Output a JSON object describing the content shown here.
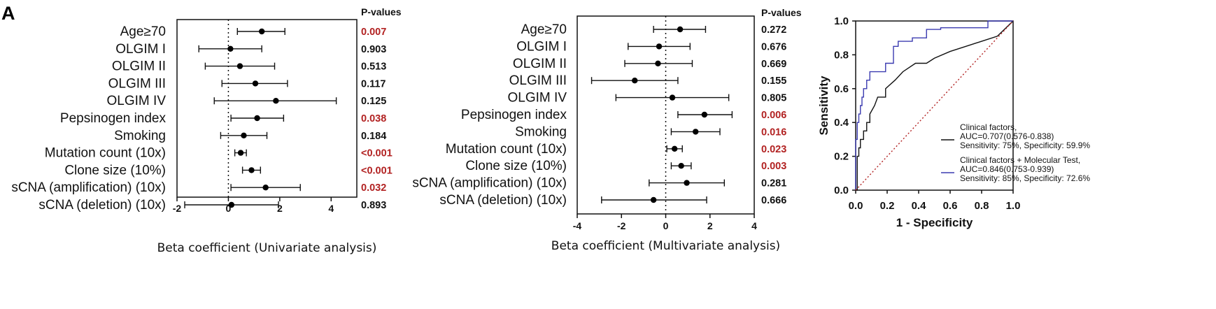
{
  "figure": {
    "panel_letter": "A"
  },
  "chart_data": [
    {
      "type": "forest",
      "p_header": "P-values",
      "xlabel": "Beta coefficient (Univariate analysis)",
      "xlim": [
        -2,
        5
      ],
      "xticks": [
        -2,
        0,
        2,
        4
      ],
      "reference_line": 0,
      "colors": {
        "significant": "#b22222",
        "nonsignificant": "#111111"
      },
      "rows": [
        {
          "label": "Age≥70",
          "estimate": 1.3,
          "lower": 0.35,
          "upper": 2.2,
          "p": "0.007",
          "significant": true
        },
        {
          "label": "OLGIM I",
          "estimate": 0.08,
          "lower": -1.15,
          "upper": 1.3,
          "p": "0.903",
          "significant": false
        },
        {
          "label": "OLGIM II",
          "estimate": 0.45,
          "lower": -0.9,
          "upper": 1.8,
          "p": "0.513",
          "significant": false
        },
        {
          "label": "OLGIM III",
          "estimate": 1.05,
          "lower": -0.25,
          "upper": 2.3,
          "p": "0.117",
          "significant": false
        },
        {
          "label": "OLGIM IV",
          "estimate": 1.85,
          "lower": -0.55,
          "upper": 4.2,
          "p": "0.125",
          "significant": false
        },
        {
          "label": "Pepsinogen index",
          "estimate": 1.12,
          "lower": 0.1,
          "upper": 2.15,
          "p": "0.038",
          "significant": true
        },
        {
          "label": "Smoking",
          "estimate": 0.6,
          "lower": -0.3,
          "upper": 1.5,
          "p": "0.184",
          "significant": false
        },
        {
          "label": "Mutation count (10x)",
          "estimate": 0.48,
          "lower": 0.25,
          "upper": 0.7,
          "p": "<0.001",
          "significant": true
        },
        {
          "label": "Clone size (10%)",
          "estimate": 0.9,
          "lower": 0.55,
          "upper": 1.25,
          "p": "<0.001",
          "significant": true
        },
        {
          "label": "sCNA (amplification) (10x)",
          "estimate": 1.45,
          "lower": 0.1,
          "upper": 2.8,
          "p": "0.032",
          "significant": true
        },
        {
          "label": "sCNA (deletion) (10x)",
          "estimate": 0.12,
          "lower": -1.7,
          "upper": 1.95,
          "p": "0.893",
          "significant": false
        }
      ]
    },
    {
      "type": "forest",
      "p_header": "P-values",
      "xlabel": "Beta coefficient (Multivariate analysis)",
      "xlim": [
        -4,
        4
      ],
      "xticks": [
        -4,
        -2,
        0,
        2,
        4
      ],
      "reference_line": 0,
      "colors": {
        "significant": "#b22222",
        "nonsignificant": "#111111"
      },
      "rows": [
        {
          "label": "Age≥70",
          "estimate": 0.65,
          "lower": -0.55,
          "upper": 1.8,
          "p": "0.272",
          "significant": false
        },
        {
          "label": "OLGIM I",
          "estimate": -0.3,
          "lower": -1.7,
          "upper": 1.1,
          "p": "0.676",
          "significant": false
        },
        {
          "label": "OLGIM II",
          "estimate": -0.35,
          "lower": -1.85,
          "upper": 1.2,
          "p": "0.669",
          "significant": false
        },
        {
          "label": "OLGIM III",
          "estimate": -1.4,
          "lower": -3.35,
          "upper": 0.55,
          "p": "0.155",
          "significant": false
        },
        {
          "label": "OLGIM IV",
          "estimate": 0.3,
          "lower": -2.25,
          "upper": 2.85,
          "p": "0.805",
          "significant": false
        },
        {
          "label": "Pepsinogen index",
          "estimate": 1.75,
          "lower": 0.55,
          "upper": 3.0,
          "p": "0.006",
          "significant": true
        },
        {
          "label": "Smoking",
          "estimate": 1.35,
          "lower": 0.25,
          "upper": 2.45,
          "p": "0.016",
          "significant": true
        },
        {
          "label": "Mutation count (10x)",
          "estimate": 0.4,
          "lower": 0.05,
          "upper": 0.75,
          "p": "0.023",
          "significant": true
        },
        {
          "label": "Clone size (10%)",
          "estimate": 0.7,
          "lower": 0.25,
          "upper": 1.15,
          "p": "0.003",
          "significant": true
        },
        {
          "label": "sCNA (amplification) (10x)",
          "estimate": 0.95,
          "lower": -0.75,
          "upper": 2.65,
          "p": "0.281",
          "significant": false
        },
        {
          "label": "sCNA (deletion) (10x)",
          "estimate": -0.55,
          "lower": -2.9,
          "upper": 1.85,
          "p": "0.666",
          "significant": false
        }
      ]
    },
    {
      "type": "line",
      "xlabel": "1 - Specificity",
      "ylabel": "Sensitivity",
      "xlim": [
        0,
        1
      ],
      "ylim": [
        0,
        1
      ],
      "xticks": [
        "0.0",
        "0.2",
        "0.4",
        "0.6",
        "0.8",
        "1.0"
      ],
      "yticks": [
        "0.0",
        "0.2",
        "0.4",
        "0.6",
        "0.8",
        "1.0"
      ],
      "legend_position": "bottom-right",
      "series": [
        {
          "legend_lines": [
            "Clinical factors,",
            "AUC=0.707(0.576-0.838)",
            "Sensitivity: 75%, Specificity: 59.9%"
          ],
          "color": "#111111",
          "x": [
            0,
            0.01,
            0.01,
            0.02,
            0.02,
            0.03,
            0.03,
            0.05,
            0.05,
            0.07,
            0.07,
            0.09,
            0.09,
            0.12,
            0.14,
            0.19,
            0.19,
            0.25,
            0.3,
            0.38,
            0.45,
            0.5,
            0.6,
            0.7,
            0.8,
            0.9,
            1.0
          ],
          "y": [
            0,
            0,
            0.2,
            0.2,
            0.25,
            0.25,
            0.3,
            0.3,
            0.35,
            0.35,
            0.4,
            0.4,
            0.45,
            0.5,
            0.55,
            0.55,
            0.6,
            0.65,
            0.7,
            0.75,
            0.75,
            0.78,
            0.82,
            0.85,
            0.88,
            0.91,
            1.0
          ]
        },
        {
          "legend_lines": [
            "Clinical factors + Molecular Test,",
            "AUC=0.846(0.753-0.939)",
            "Sensitivity: 85%, Specificity: 72.6%"
          ],
          "color": "#3b3bb0",
          "x": [
            0,
            0,
            0.01,
            0.01,
            0.02,
            0.02,
            0.03,
            0.03,
            0.04,
            0.04,
            0.05,
            0.05,
            0.07,
            0.07,
            0.09,
            0.09,
            0.19,
            0.19,
            0.24,
            0.24,
            0.27,
            0.27,
            0.36,
            0.36,
            0.45,
            0.45,
            0.54,
            0.54,
            0.84,
            0.84,
            1.0
          ],
          "y": [
            0,
            0.3,
            0.3,
            0.4,
            0.4,
            0.45,
            0.45,
            0.5,
            0.5,
            0.55,
            0.55,
            0.6,
            0.6,
            0.65,
            0.65,
            0.7,
            0.7,
            0.75,
            0.75,
            0.85,
            0.85,
            0.88,
            0.88,
            0.9,
            0.9,
            0.95,
            0.95,
            0.96,
            0.96,
            1.0,
            1.0
          ]
        },
        {
          "legend_lines": [],
          "color": "#b22222",
          "dashed": true,
          "x": [
            0,
            1
          ],
          "y": [
            0,
            1
          ]
        }
      ]
    }
  ]
}
